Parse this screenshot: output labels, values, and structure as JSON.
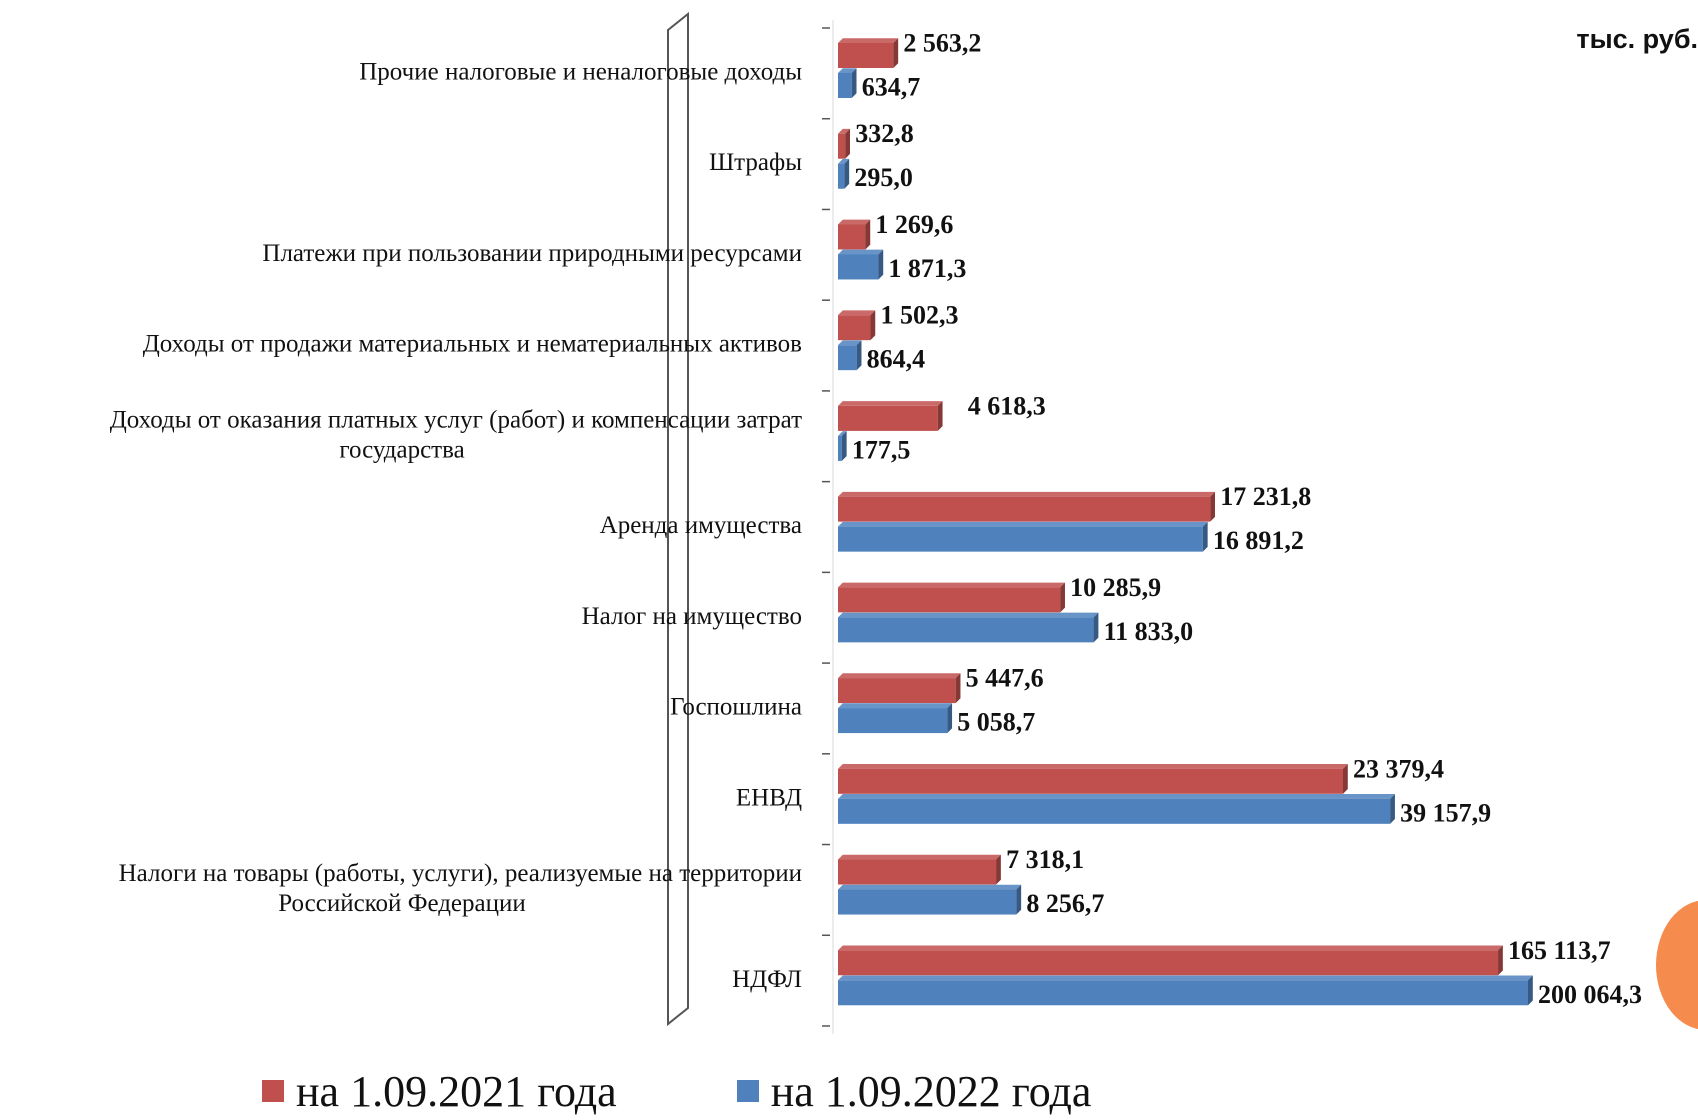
{
  "unit_label": "тыс. руб.",
  "chart_data": {
    "type": "bar",
    "orientation": "horizontal",
    "categories": [
      [
        "Прочие налоговые и неналоговые доходы"
      ],
      [
        "Штрафы"
      ],
      [
        "Платежи при пользовании природными ресурсами"
      ],
      [
        "Доходы от продажи материальных и нематериальных активов"
      ],
      [
        "Доходы от оказания платных услуг (работ) и компенсации затрат",
        "государства"
      ],
      [
        "Аренда имущества"
      ],
      [
        "Налог на имущество"
      ],
      [
        "Госпошлина"
      ],
      [
        "ЕНВД"
      ],
      [
        "Налоги на товары (работы, услуги), реализуемые на территории",
        "Российской Федерации"
      ],
      [
        "НДФЛ"
      ]
    ],
    "series": [
      {
        "name": "на 1.09.2021 года",
        "color": "#c0504d",
        "values": [
          2563.2,
          332.8,
          1269.6,
          1502.3,
          4618.3,
          17231.8,
          10285.9,
          5447.6,
          23379.4,
          7318.1,
          165113.7
        ],
        "labels": [
          "2 563,2",
          "332,8",
          "1 269,6",
          "1 502,3",
          "4 618,3",
          "17 231,8",
          "10 285,9",
          "5 447,6",
          "23 379,4",
          "7 318,1",
          "165 113,7"
        ]
      },
      {
        "name": "на 1.09.2022 года",
        "color": "#4f81bd",
        "values": [
          634.7,
          295.0,
          1871.3,
          864.4,
          177.5,
          16891.2,
          11833.0,
          5058.7,
          39157.9,
          8256.7,
          200064.3
        ],
        "labels": [
          "634,7",
          "295,0",
          "1 871,3",
          "864,4",
          "177,5",
          "16 891,2",
          "11 833,0",
          "5 058,7",
          "39 157,9",
          "8 256,7",
          "200 064,3"
        ]
      }
    ],
    "scale": "broken",
    "grid": false,
    "legend_position": "bottom"
  }
}
